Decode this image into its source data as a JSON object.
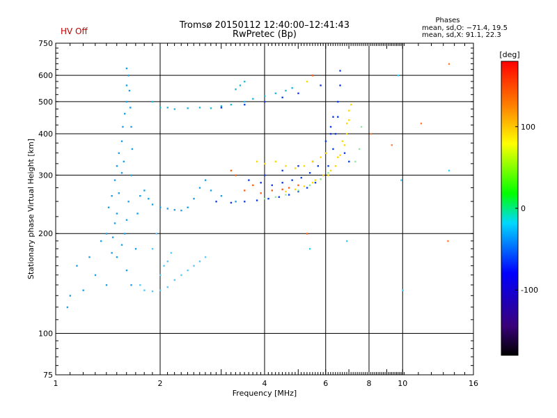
{
  "header": {
    "title_line1": "Tromsø 20150112 12:40:00–12:41:43",
    "title_line2": "RwPretec (Bp)",
    "hv_status": "HV Off",
    "hv_color": "#c00000",
    "phases_title": "Phases",
    "phases_o": "mean, sd,O: −71.4, 19.5",
    "phases_x": "mean, sd,X: 91.1, 22.3"
  },
  "chart_data": {
    "type": "scatter",
    "xlabel": "Frequency [MHz]",
    "ylabel": "Stationary phase Virtual Height [km]",
    "x_scale": "log",
    "y_scale": "log",
    "xlim": [
      1,
      16
    ],
    "ylim": [
      75,
      750
    ],
    "x_ticks": [
      1,
      2,
      4,
      6,
      8,
      10,
      16
    ],
    "y_ticks": [
      75,
      100,
      200,
      300,
      400,
      500,
      600,
      750
    ],
    "x_major_gridlines": [
      2,
      4,
      6,
      8,
      10
    ],
    "y_major_gridlines": [
      100,
      200,
      300,
      400,
      500,
      600
    ],
    "grid": true,
    "colorbar": {
      "label": "[deg]",
      "range": [
        -180,
        180
      ],
      "ticks": [
        -100,
        0,
        100
      ],
      "colors": [
        "#000000",
        "#3a007a",
        "#0000ff",
        "#00d8ff",
        "#00ff00",
        "#ffff00",
        "#ff8000",
        "#ff0000"
      ]
    },
    "series": [
      {
        "color": "#1a9fe8",
        "points": [
          [
            1.08,
            120
          ],
          [
            1.1,
            130
          ],
          [
            1.15,
            160
          ],
          [
            1.2,
            135
          ],
          [
            1.25,
            170
          ],
          [
            1.3,
            150
          ],
          [
            1.35,
            190
          ],
          [
            1.4,
            140
          ],
          [
            1.45,
            175
          ],
          [
            1.4,
            200
          ],
          [
            1.42,
            240
          ],
          [
            1.45,
            260
          ],
          [
            1.48,
            290
          ],
          [
            1.5,
            320
          ],
          [
            1.52,
            350
          ],
          [
            1.55,
            380
          ],
          [
            1.56,
            420
          ],
          [
            1.58,
            460
          ],
          [
            1.6,
            500
          ],
          [
            1.6,
            560
          ],
          [
            1.6,
            630
          ],
          [
            1.62,
            600
          ],
          [
            1.63,
            540
          ],
          [
            1.64,
            480
          ],
          [
            1.65,
            420
          ],
          [
            1.66,
            360
          ],
          [
            1.65,
            300
          ],
          [
            1.62,
            250
          ],
          [
            1.6,
            220
          ],
          [
            1.58,
            200
          ],
          [
            1.55,
            185
          ],
          [
            1.5,
            170
          ],
          [
            1.6,
            155
          ],
          [
            1.65,
            140
          ],
          [
            1.7,
            180
          ],
          [
            1.72,
            230
          ],
          [
            1.75,
            260
          ],
          [
            1.8,
            270
          ],
          [
            1.85,
            255
          ],
          [
            1.9,
            245
          ],
          [
            2.0,
            240
          ],
          [
            2.1,
            238
          ],
          [
            2.2,
            236
          ],
          [
            2.3,
            235
          ],
          [
            2.4,
            240
          ],
          [
            2.5,
            255
          ],
          [
            2.6,
            275
          ],
          [
            2.7,
            290
          ],
          [
            2.8,
            270
          ],
          [
            3.0,
            260
          ],
          [
            3.3,
            250
          ],
          [
            1.5,
            230
          ],
          [
            1.52,
            265
          ],
          [
            1.55,
            305
          ],
          [
            1.57,
            330
          ],
          [
            1.48,
            215
          ],
          [
            1.46,
            195
          ]
        ]
      },
      {
        "color": "#5ac8ff",
        "points": [
          [
            1.75,
            140
          ],
          [
            1.8,
            135
          ],
          [
            1.9,
            134
          ],
          [
            2.0,
            135
          ],
          [
            2.1,
            138
          ],
          [
            2.2,
            145
          ],
          [
            2.3,
            150
          ],
          [
            2.4,
            155
          ],
          [
            2.5,
            160
          ],
          [
            2.6,
            165
          ],
          [
            2.7,
            170
          ],
          [
            2.0,
            150
          ],
          [
            2.05,
            160
          ],
          [
            2.1,
            165
          ],
          [
            2.15,
            175
          ],
          [
            1.9,
            180
          ],
          [
            1.95,
            200
          ]
        ]
      },
      {
        "color": "#20b8d8",
        "points": [
          [
            1.9,
            500
          ],
          [
            2.0,
            480
          ],
          [
            2.1,
            480
          ],
          [
            2.2,
            475
          ],
          [
            2.4,
            478
          ],
          [
            2.6,
            480
          ],
          [
            2.8,
            478
          ],
          [
            3.0,
            485
          ],
          [
            3.2,
            490
          ],
          [
            3.5,
            500
          ],
          [
            3.3,
            545
          ],
          [
            3.4,
            560
          ],
          [
            3.5,
            575
          ],
          [
            3.7,
            510
          ],
          [
            4.0,
            520
          ],
          [
            4.3,
            530
          ],
          [
            4.6,
            540
          ],
          [
            4.8,
            550
          ]
        ]
      },
      {
        "color": "#0a3de8",
        "points": [
          [
            2.9,
            250
          ],
          [
            3.2,
            248
          ],
          [
            3.5,
            250
          ],
          [
            3.8,
            252
          ],
          [
            4.1,
            255
          ],
          [
            4.4,
            258
          ],
          [
            4.7,
            262
          ],
          [
            5.0,
            268
          ],
          [
            5.3,
            275
          ],
          [
            5.6,
            285
          ],
          [
            5.9,
            300
          ],
          [
            6.1,
            320
          ],
          [
            6.3,
            360
          ],
          [
            6.4,
            400
          ],
          [
            6.5,
            450
          ],
          [
            6.5,
            500
          ],
          [
            6.6,
            560
          ],
          [
            6.6,
            620
          ],
          [
            6.3,
            450
          ],
          [
            6.2,
            400
          ],
          [
            6.0,
            350
          ],
          [
            5.7,
            320
          ],
          [
            5.4,
            305
          ],
          [
            5.1,
            295
          ],
          [
            4.8,
            290
          ],
          [
            4.5,
            285
          ],
          [
            4.2,
            280
          ],
          [
            3.9,
            285
          ],
          [
            3.6,
            290
          ],
          [
            4.0,
            300
          ],
          [
            4.5,
            310
          ],
          [
            5.0,
            320
          ],
          [
            5.5,
            330
          ],
          [
            6.0,
            380
          ],
          [
            6.2,
            420
          ],
          [
            3.0,
            480
          ],
          [
            3.5,
            490
          ],
          [
            4.0,
            500
          ],
          [
            4.5,
            515
          ],
          [
            5.0,
            530
          ],
          [
            5.5,
            600
          ],
          [
            5.8,
            560
          ],
          [
            6.8,
            350
          ],
          [
            7.0,
            330
          ]
        ]
      },
      {
        "color": "#ffd800",
        "points": [
          [
            4.6,
            268
          ],
          [
            4.9,
            272
          ],
          [
            5.2,
            278
          ],
          [
            5.5,
            285
          ],
          [
            5.8,
            292
          ],
          [
            6.1,
            300
          ],
          [
            6.4,
            320
          ],
          [
            6.6,
            345
          ],
          [
            6.8,
            370
          ],
          [
            6.9,
            400
          ],
          [
            7.0,
            440
          ],
          [
            7.1,
            490
          ],
          [
            7.0,
            470
          ],
          [
            6.9,
            430
          ],
          [
            6.7,
            380
          ],
          [
            6.5,
            340
          ],
          [
            6.2,
            310
          ],
          [
            5.9,
            300
          ],
          [
            5.6,
            290
          ],
          [
            3.8,
            330
          ],
          [
            4.0,
            325
          ],
          [
            4.3,
            330
          ],
          [
            4.6,
            320
          ],
          [
            4.9,
            315
          ],
          [
            5.2,
            320
          ],
          [
            5.5,
            330
          ],
          [
            5.8,
            340
          ],
          [
            6.0,
            350
          ],
          [
            5.3,
            575
          ]
        ]
      },
      {
        "color": "#ff6010",
        "points": [
          [
            3.5,
            270
          ],
          [
            3.7,
            280
          ],
          [
            3.9,
            265
          ],
          [
            4.2,
            270
          ],
          [
            4.5,
            272
          ],
          [
            4.7,
            275
          ],
          [
            5.0,
            280
          ],
          [
            3.2,
            310
          ],
          [
            3.3,
            300
          ],
          [
            5.3,
            200
          ],
          [
            5.5,
            600
          ]
        ]
      },
      {
        "color": "#90e8a0",
        "points": [
          [
            4.0,
            255
          ],
          [
            4.3,
            258
          ],
          [
            4.6,
            262
          ],
          [
            5.0,
            270
          ],
          [
            5.4,
            280
          ],
          [
            5.8,
            292
          ],
          [
            6.1,
            305
          ],
          [
            7.3,
            330
          ],
          [
            7.5,
            360
          ],
          [
            7.6,
            420
          ]
        ]
      },
      {
        "color": "#30d0ff",
        "points": [
          [
            5.4,
            180
          ],
          [
            6.9,
            190
          ],
          [
            9.7,
            600
          ],
          [
            9.9,
            290
          ],
          [
            10.0,
            135
          ],
          [
            13.6,
            310
          ]
        ]
      },
      {
        "color": "#ff8030",
        "points": [
          [
            11.3,
            430
          ],
          [
            13.5,
            190
          ],
          [
            13.6,
            650
          ],
          [
            8.1,
            400
          ],
          [
            9.3,
            370
          ]
        ]
      }
    ]
  }
}
